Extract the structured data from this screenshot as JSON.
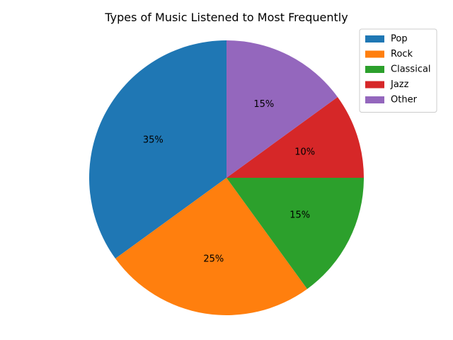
{
  "chart_data": {
    "type": "pie",
    "title": "Types of Music Listened to Most Frequently",
    "categories": [
      "Pop",
      "Rock",
      "Classical",
      "Jazz",
      "Other"
    ],
    "values": [
      35,
      25,
      15,
      10,
      15
    ],
    "value_labels": [
      "35%",
      "25%",
      "15%",
      "10%",
      "15%"
    ],
    "colors": [
      "#1f77b4",
      "#ff7f0e",
      "#2ca02c",
      "#d62728",
      "#9467bd"
    ],
    "start_angle_deg": 90,
    "direction": "counterclockwise",
    "legend_position": "top-right"
  }
}
